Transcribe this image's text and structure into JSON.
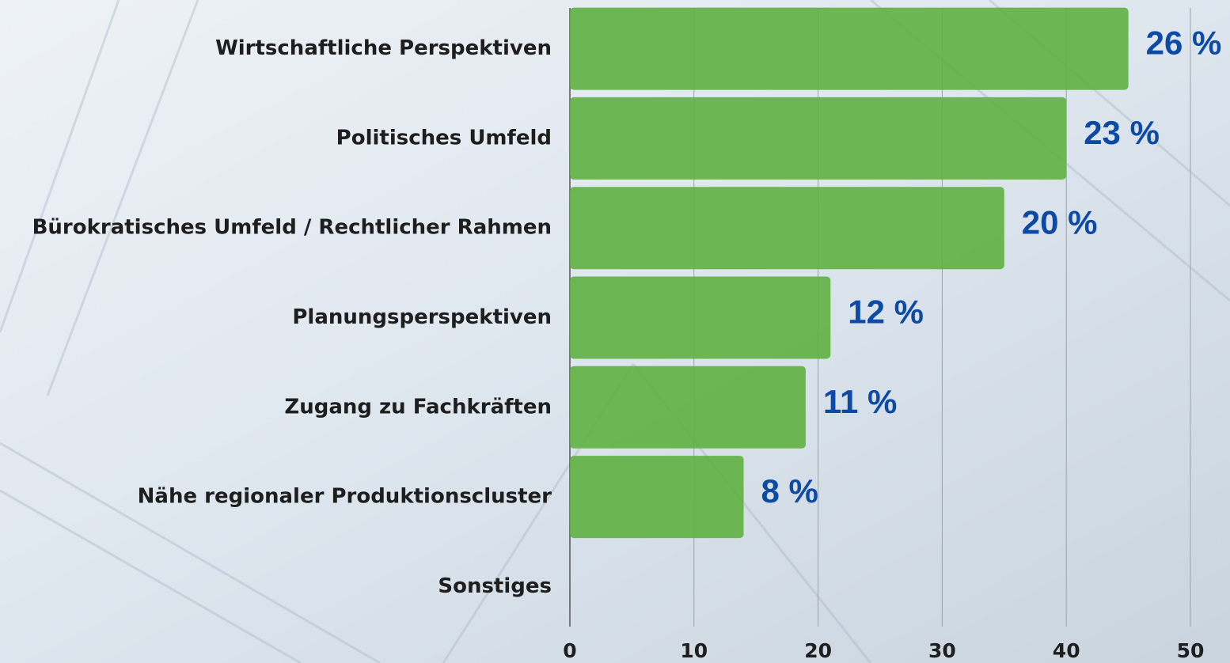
{
  "chart_data": {
    "type": "hbar",
    "categories": [
      "Wirtschaftliche Perspektiven",
      "Politisches Umfeld",
      "Bürokratisches Umfeld / Rechtlicher Rahmen",
      "Planungsperspektiven",
      "Zugang zu Fachkräften",
      "Nähe regionaler Produktionscluster",
      "Sonstiges"
    ],
    "values": [
      45,
      40,
      35,
      21,
      19,
      14,
      0
    ],
    "annotations": [
      "26 %",
      "23 %",
      "20 %",
      "12 %",
      "11 %",
      "8 %"
    ],
    "color": "#5fb043",
    "xlim": [
      0,
      50
    ],
    "xticks": [
      0,
      10,
      20,
      30,
      40,
      50
    ],
    "grid": true
  }
}
